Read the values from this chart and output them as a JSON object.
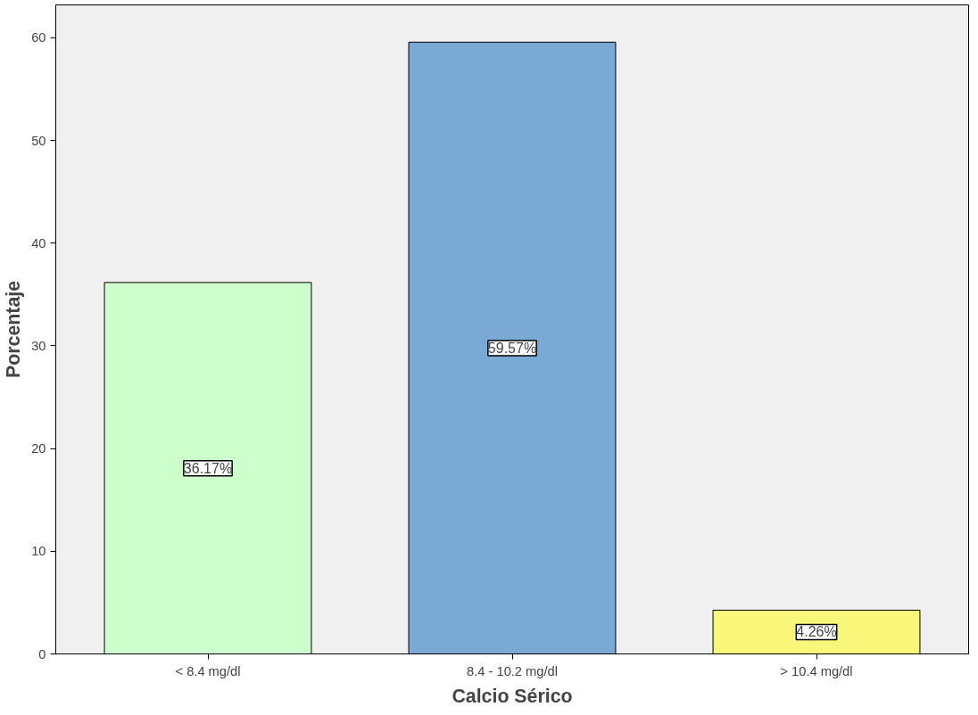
{
  "chart_data": {
    "type": "bar",
    "xlabel": "Calcio Sérico",
    "ylabel": "Porcentaje",
    "categories": [
      "< 8.4 mg/dl",
      "8.4 - 10.2 mg/dl",
      "> 10.4 mg/dl"
    ],
    "values": [
      36.17,
      59.57,
      4.26
    ],
    "colors": [
      "#ccffcc",
      "#7ba9d6",
      "#f9f77a"
    ],
    "value_labels": [
      "36.17%",
      "59.57%",
      "4.26%"
    ],
    "ylim": [
      0,
      63.2
    ],
    "yticks": [
      0,
      10,
      20,
      30,
      40,
      50,
      60
    ],
    "grid": false
  }
}
